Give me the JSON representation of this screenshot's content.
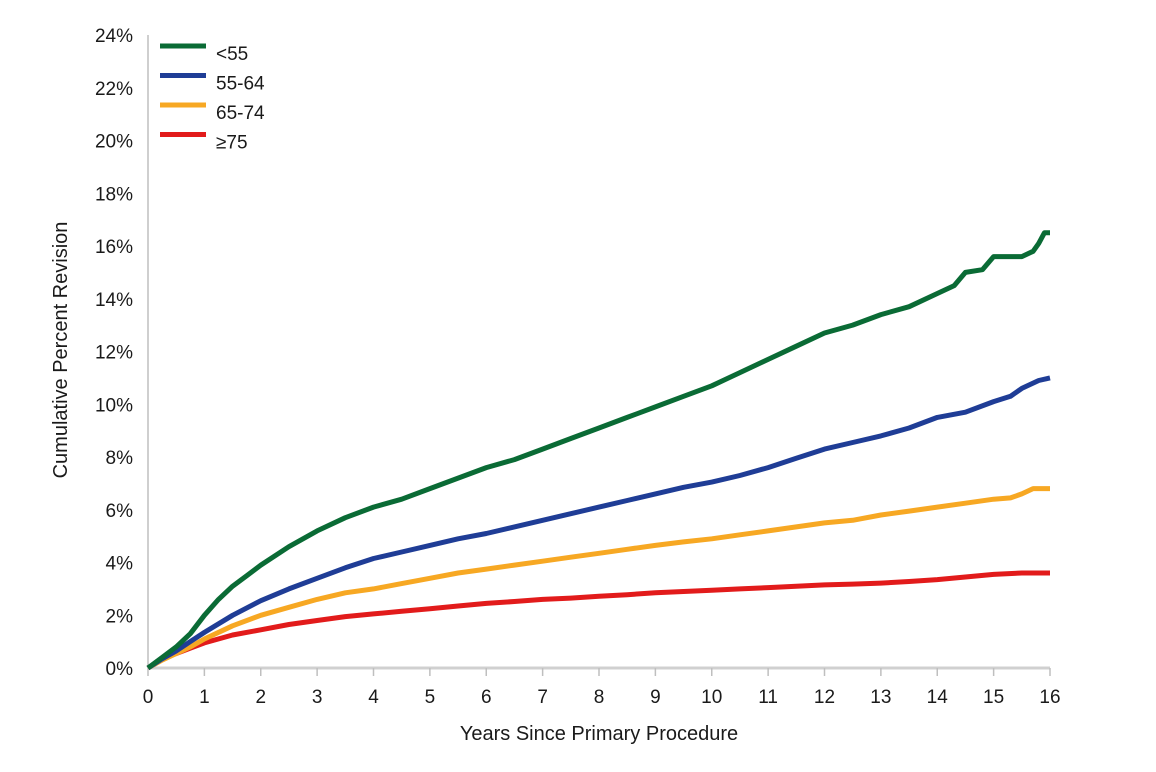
{
  "chart_data": {
    "type": "line",
    "xlabel": "Years Since Primary Procedure",
    "ylabel": "Cumulative Percent Revision",
    "xlim": [
      0,
      16
    ],
    "ylim": [
      0,
      24
    ],
    "x_ticks": [
      "0",
      "1",
      "2",
      "3",
      "4",
      "5",
      "6",
      "7",
      "8",
      "9",
      "10",
      "11",
      "12",
      "13",
      "14",
      "15",
      "16"
    ],
    "y_ticks": [
      "0%",
      "2%",
      "4%",
      "6%",
      "8%",
      "10%",
      "12%",
      "14%",
      "16%",
      "18%",
      "20%",
      "22%",
      "24%"
    ],
    "grid": false,
    "legend_position": "top-left",
    "series": [
      {
        "name": "<55",
        "color": "#0a6b35",
        "x": [
          0,
          0.25,
          0.5,
          0.75,
          1,
          1.25,
          1.5,
          1.75,
          2,
          2.5,
          3,
          3.5,
          4,
          4.5,
          5,
          5.5,
          6,
          6.5,
          7,
          7.5,
          8,
          8.5,
          9,
          9.5,
          10,
          10.5,
          11,
          11.5,
          12,
          12.5,
          13,
          13.5,
          14,
          14.3,
          14.5,
          14.8,
          15,
          15.5,
          15.7,
          15.8,
          15.9,
          16
        ],
        "y": [
          0,
          0.4,
          0.8,
          1.3,
          2.0,
          2.6,
          3.1,
          3.5,
          3.9,
          4.6,
          5.2,
          5.7,
          6.1,
          6.4,
          6.8,
          7.2,
          7.6,
          7.9,
          8.3,
          8.7,
          9.1,
          9.5,
          9.9,
          10.3,
          10.7,
          11.2,
          11.7,
          12.2,
          12.7,
          13.0,
          13.4,
          13.7,
          14.2,
          14.5,
          15.0,
          15.1,
          15.6,
          15.6,
          15.8,
          16.1,
          16.5,
          16.5
        ]
      },
      {
        "name": "55-64",
        "color": "#1f3d96",
        "x": [
          0,
          0.25,
          0.5,
          0.75,
          1,
          1.5,
          2,
          2.5,
          3,
          3.5,
          4,
          4.5,
          5,
          5.5,
          6,
          6.5,
          7,
          7.5,
          8,
          8.5,
          9,
          9.5,
          10,
          10.5,
          11,
          11.5,
          12,
          12.5,
          13,
          13.5,
          14,
          14.5,
          15,
          15.3,
          15.5,
          15.8,
          16
        ],
        "y": [
          0,
          0.35,
          0.65,
          1.0,
          1.35,
          2.0,
          2.55,
          3.0,
          3.4,
          3.8,
          4.15,
          4.4,
          4.65,
          4.9,
          5.1,
          5.35,
          5.6,
          5.85,
          6.1,
          6.35,
          6.6,
          6.85,
          7.05,
          7.3,
          7.6,
          7.95,
          8.3,
          8.55,
          8.8,
          9.1,
          9.5,
          9.7,
          10.1,
          10.3,
          10.6,
          10.9,
          11.0
        ]
      },
      {
        "name": "65-74",
        "color": "#f7a823",
        "x": [
          0,
          0.25,
          0.5,
          0.75,
          1,
          1.5,
          2,
          2.5,
          3,
          3.5,
          4,
          4.5,
          5,
          5.5,
          6,
          6.5,
          7,
          7.5,
          8,
          8.5,
          9,
          9.5,
          10,
          10.5,
          11,
          11.5,
          12,
          12.5,
          13,
          13.5,
          14,
          14.5,
          15,
          15.3,
          15.5,
          15.7,
          16
        ],
        "y": [
          0,
          0.3,
          0.55,
          0.8,
          1.1,
          1.6,
          2.0,
          2.3,
          2.6,
          2.85,
          3.0,
          3.2,
          3.4,
          3.6,
          3.75,
          3.9,
          4.05,
          4.2,
          4.35,
          4.5,
          4.65,
          4.78,
          4.9,
          5.05,
          5.2,
          5.35,
          5.5,
          5.6,
          5.8,
          5.95,
          6.1,
          6.25,
          6.4,
          6.45,
          6.6,
          6.8,
          6.8
        ]
      },
      {
        "name": "≥75",
        "color": "#e21b1b",
        "x": [
          0,
          0.25,
          0.5,
          0.75,
          1,
          1.5,
          2,
          2.5,
          3,
          3.5,
          4,
          4.5,
          5,
          5.5,
          6,
          6.5,
          7,
          7.5,
          8,
          8.5,
          9,
          9.5,
          10,
          10.5,
          11,
          11.5,
          12,
          12.5,
          13,
          13.5,
          14,
          14.5,
          15,
          15.5,
          16
        ],
        "y": [
          0,
          0.35,
          0.55,
          0.75,
          0.95,
          1.25,
          1.45,
          1.65,
          1.8,
          1.95,
          2.05,
          2.15,
          2.25,
          2.35,
          2.45,
          2.52,
          2.6,
          2.65,
          2.72,
          2.78,
          2.85,
          2.9,
          2.95,
          3.0,
          3.05,
          3.1,
          3.15,
          3.18,
          3.22,
          3.28,
          3.35,
          3.45,
          3.55,
          3.6,
          3.6
        ]
      }
    ]
  }
}
